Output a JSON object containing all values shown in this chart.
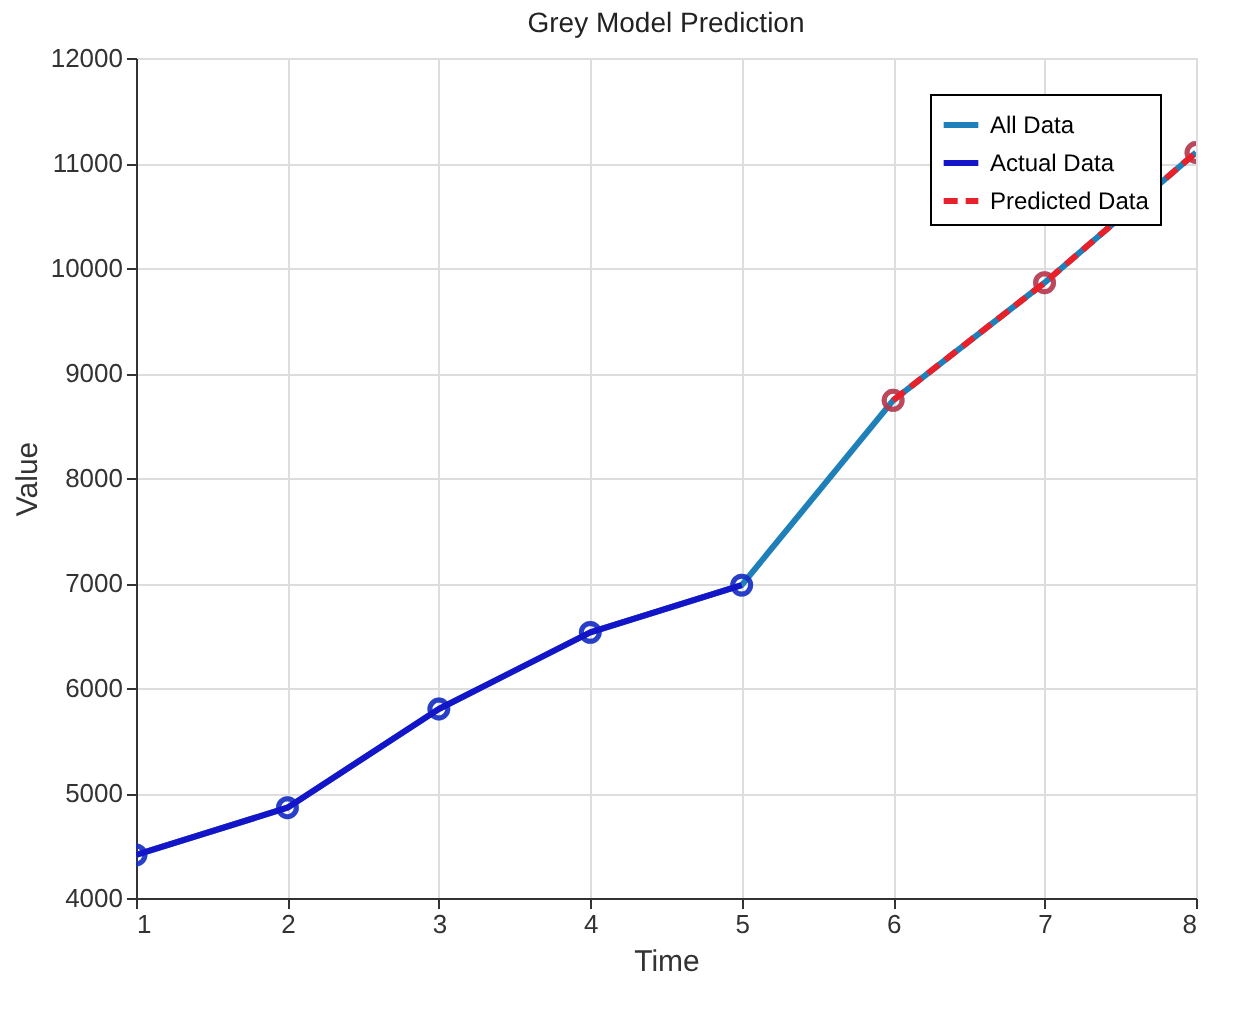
{
  "chart_data": {
    "type": "line",
    "title": "Grey Model Prediction",
    "xlabel": "Time",
    "ylabel": "Value",
    "xlim": [
      1,
      8
    ],
    "xticks": [
      1,
      2,
      3,
      4,
      5,
      6,
      7,
      8
    ],
    "ylim": [
      4000,
      12000
    ],
    "yticks": [
      4000,
      5000,
      6000,
      7000,
      8000,
      9000,
      10000,
      11000,
      12000
    ],
    "grid": true,
    "legend": "top right",
    "marker": "circle",
    "series": [
      {
        "name": "All Data",
        "color": "#1f7fb8",
        "x": [
          1,
          2,
          3,
          4,
          5,
          6,
          7,
          8
        ],
        "values": [
          4410,
          4860,
          5800,
          6530,
          6980,
          8740,
          9860,
          11100
        ],
        "line_style": "solid"
      },
      {
        "name": "Actual Data",
        "color": "#1414c8",
        "x": [
          1,
          2,
          3,
          4,
          5
        ],
        "values": [
          4410,
          4860,
          5800,
          6530,
          6980
        ],
        "line_style": "solid"
      },
      {
        "name": "Predicted Data",
        "color": "#e8202a",
        "x": [
          6,
          7,
          8
        ],
        "values": [
          8740,
          9860,
          11100
        ],
        "line_style": "dashed"
      }
    ]
  }
}
